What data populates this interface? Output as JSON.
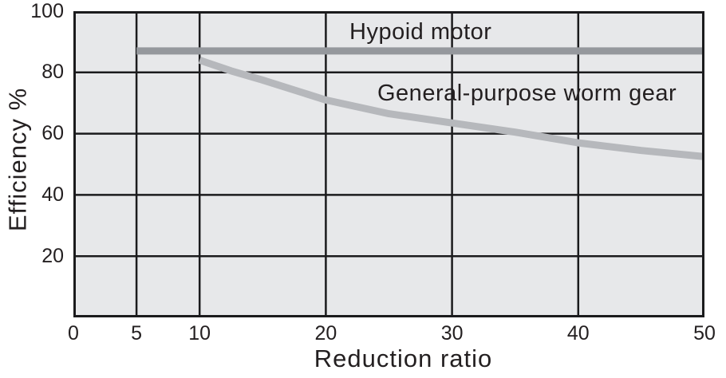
{
  "chart_data": {
    "type": "line",
    "title": "",
    "xlabel": "Reduction ratio",
    "ylabel": "Efficiency %",
    "xlim": [
      0,
      50
    ],
    "ylim": [
      0,
      100
    ],
    "x_ticks": [
      0,
      5,
      10,
      20,
      30,
      40,
      50
    ],
    "y_ticks": [
      20,
      40,
      60,
      80,
      100
    ],
    "grid": true,
    "legend_position": "inline annotations above lines",
    "plot_bg_color": "#e7e8ea",
    "grid_color": "#1b1b1d",
    "text_color": "#231f20",
    "series": [
      {
        "name": "Hypoid motor",
        "color": "#95989d",
        "line_width": 9,
        "x": [
          5,
          50
        ],
        "y": [
          87,
          87
        ]
      },
      {
        "name": "General-purpose worm gear",
        "color": "#b6b8bc",
        "line_width": 9,
        "x": [
          10,
          12.5,
          15,
          20,
          25,
          30,
          35,
          40,
          45,
          50
        ],
        "y": [
          84,
          80.5,
          77.5,
          71,
          66.5,
          63.5,
          60.5,
          57,
          54.5,
          52.5
        ]
      }
    ]
  }
}
